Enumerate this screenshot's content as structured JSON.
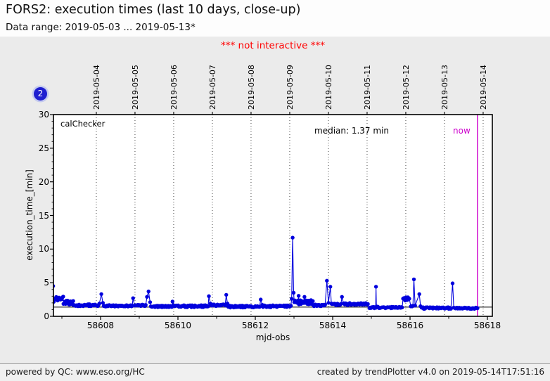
{
  "header": {
    "title": "FORS2: execution times (last 10 days, close-up)",
    "subtitle": "Data range: 2019-05-03 ... 2019-05-13*"
  },
  "warning": "*** not interactive ***",
  "badge": "2",
  "footer": {
    "left": "powered by QC: www.eso.org/HC",
    "right": "created by trendPlotter v4.0 on 2019-05-14T17:51:16"
  },
  "chart_data": {
    "type": "scatter",
    "inplot_label": "calChecker",
    "xlabel": "mjd-obs",
    "ylabel": "execution_time_[min]",
    "xlim": [
      58606.782,
      58618.127
    ],
    "ylim": [
      0,
      30
    ],
    "grid": "vertical-dotted-at-dates",
    "x_major_ticks": [
      58608,
      58610,
      58612,
      58614,
      58616,
      58618
    ],
    "x_minor_ticks": [
      58607,
      58609,
      58611,
      58613,
      58615,
      58617
    ],
    "y_major_ticks": [
      0,
      5,
      10,
      15,
      20,
      25,
      30
    ],
    "top_axis_dates": [
      {
        "label": "2019-05-04",
        "mjd": 58607.89
      },
      {
        "label": "2019-05-05",
        "mjd": 58608.89
      },
      {
        "label": "2019-05-06",
        "mjd": 58609.89
      },
      {
        "label": "2019-05-07",
        "mjd": 58610.89
      },
      {
        "label": "2019-05-08",
        "mjd": 58611.89
      },
      {
        "label": "2019-05-09",
        "mjd": 58612.89
      },
      {
        "label": "2019-05-10",
        "mjd": 58613.89
      },
      {
        "label": "2019-05-11",
        "mjd": 58614.89
      },
      {
        "label": "2019-05-12",
        "mjd": 58615.89
      },
      {
        "label": "2019-05-13",
        "mjd": 58616.89
      },
      {
        "label": "2019-05-14",
        "mjd": 58617.89
      }
    ],
    "median": {
      "value": 1.37,
      "label": "median: 1.37 min"
    },
    "now_line": {
      "mjd": 58617.743,
      "label": "now"
    },
    "colors": {
      "series": "#0000dd",
      "now": "#cc00cc",
      "median_line": "#000000",
      "grid": "#333333"
    },
    "spike_points": [
      [
        58606.775,
        4.5
      ],
      [
        58606.79,
        2.15
      ],
      [
        58607.97,
        1.9
      ],
      [
        58608.02,
        3.3
      ],
      [
        58608.06,
        2.0
      ],
      [
        58608.84,
        2.7
      ],
      [
        58609.2,
        2.9
      ],
      [
        58609.24,
        3.7
      ],
      [
        58609.28,
        2.1
      ],
      [
        58609.86,
        2.2
      ],
      [
        58610.8,
        3.0
      ],
      [
        58610.84,
        1.9
      ],
      [
        58611.25,
        3.2
      ],
      [
        58611.28,
        1.9
      ],
      [
        58612.14,
        2.5
      ],
      [
        58612.18,
        1.7
      ],
      [
        58612.94,
        2.6
      ],
      [
        58612.965,
        11.7
      ],
      [
        58612.99,
        3.5
      ],
      [
        58613.005,
        2.1
      ],
      [
        58613.12,
        3.05
      ],
      [
        58613.27,
        2.9
      ],
      [
        58613.44,
        2.4
      ],
      [
        58613.85,
        5.3
      ],
      [
        58613.89,
        2.0
      ],
      [
        58613.94,
        4.4
      ],
      [
        58613.965,
        1.9
      ],
      [
        58614.24,
        2.9
      ],
      [
        58615.12,
        4.4
      ],
      [
        58615.14,
        1.45
      ],
      [
        58616.1,
        5.5
      ],
      [
        58616.13,
        1.6
      ],
      [
        58616.24,
        3.3
      ],
      [
        58616.27,
        1.5
      ],
      [
        58617.1,
        4.9
      ],
      [
        58617.13,
        1.3
      ],
      [
        58617.743,
        1.2
      ]
    ],
    "baseline_segments": [
      {
        "from": 58606.8,
        "to": 58607.04,
        "lo": 2.35,
        "hi": 2.95
      },
      {
        "from": 58607.04,
        "to": 58607.3,
        "lo": 1.75,
        "hi": 2.35
      },
      {
        "from": 58607.3,
        "to": 58607.96,
        "lo": 1.5,
        "hi": 1.8
      },
      {
        "from": 58608.08,
        "to": 58608.82,
        "lo": 1.45,
        "hi": 1.7
      },
      {
        "from": 58608.88,
        "to": 58609.18,
        "lo": 1.5,
        "hi": 1.75
      },
      {
        "from": 58609.3,
        "to": 58609.84,
        "lo": 1.35,
        "hi": 1.6
      },
      {
        "from": 58609.88,
        "to": 58610.78,
        "lo": 1.35,
        "hi": 1.65
      },
      {
        "from": 58610.86,
        "to": 58611.23,
        "lo": 1.5,
        "hi": 1.8
      },
      {
        "from": 58611.3,
        "to": 58612.12,
        "lo": 1.3,
        "hi": 1.6
      },
      {
        "from": 58612.2,
        "to": 58612.92,
        "lo": 1.35,
        "hi": 1.65
      },
      {
        "from": 58613.02,
        "to": 58613.5,
        "lo": 1.75,
        "hi": 2.45
      },
      {
        "from": 58613.5,
        "to": 58613.82,
        "lo": 1.5,
        "hi": 1.8
      },
      {
        "from": 58613.98,
        "to": 58614.22,
        "lo": 1.6,
        "hi": 1.9
      },
      {
        "from": 58614.28,
        "to": 58614.92,
        "lo": 1.65,
        "hi": 1.98
      },
      {
        "from": 58614.95,
        "to": 58615.8,
        "lo": 1.2,
        "hi": 1.45
      },
      {
        "from": 58615.82,
        "to": 58615.99,
        "lo": 2.2,
        "hi": 2.85
      },
      {
        "from": 58616.02,
        "to": 58616.08,
        "lo": 1.45,
        "hi": 1.6
      },
      {
        "from": 58616.3,
        "to": 58617.06,
        "lo": 1.1,
        "hi": 1.35
      },
      {
        "from": 58617.16,
        "to": 58617.74,
        "lo": 1.08,
        "hi": 1.3
      }
    ],
    "point_step": 0.018
  }
}
